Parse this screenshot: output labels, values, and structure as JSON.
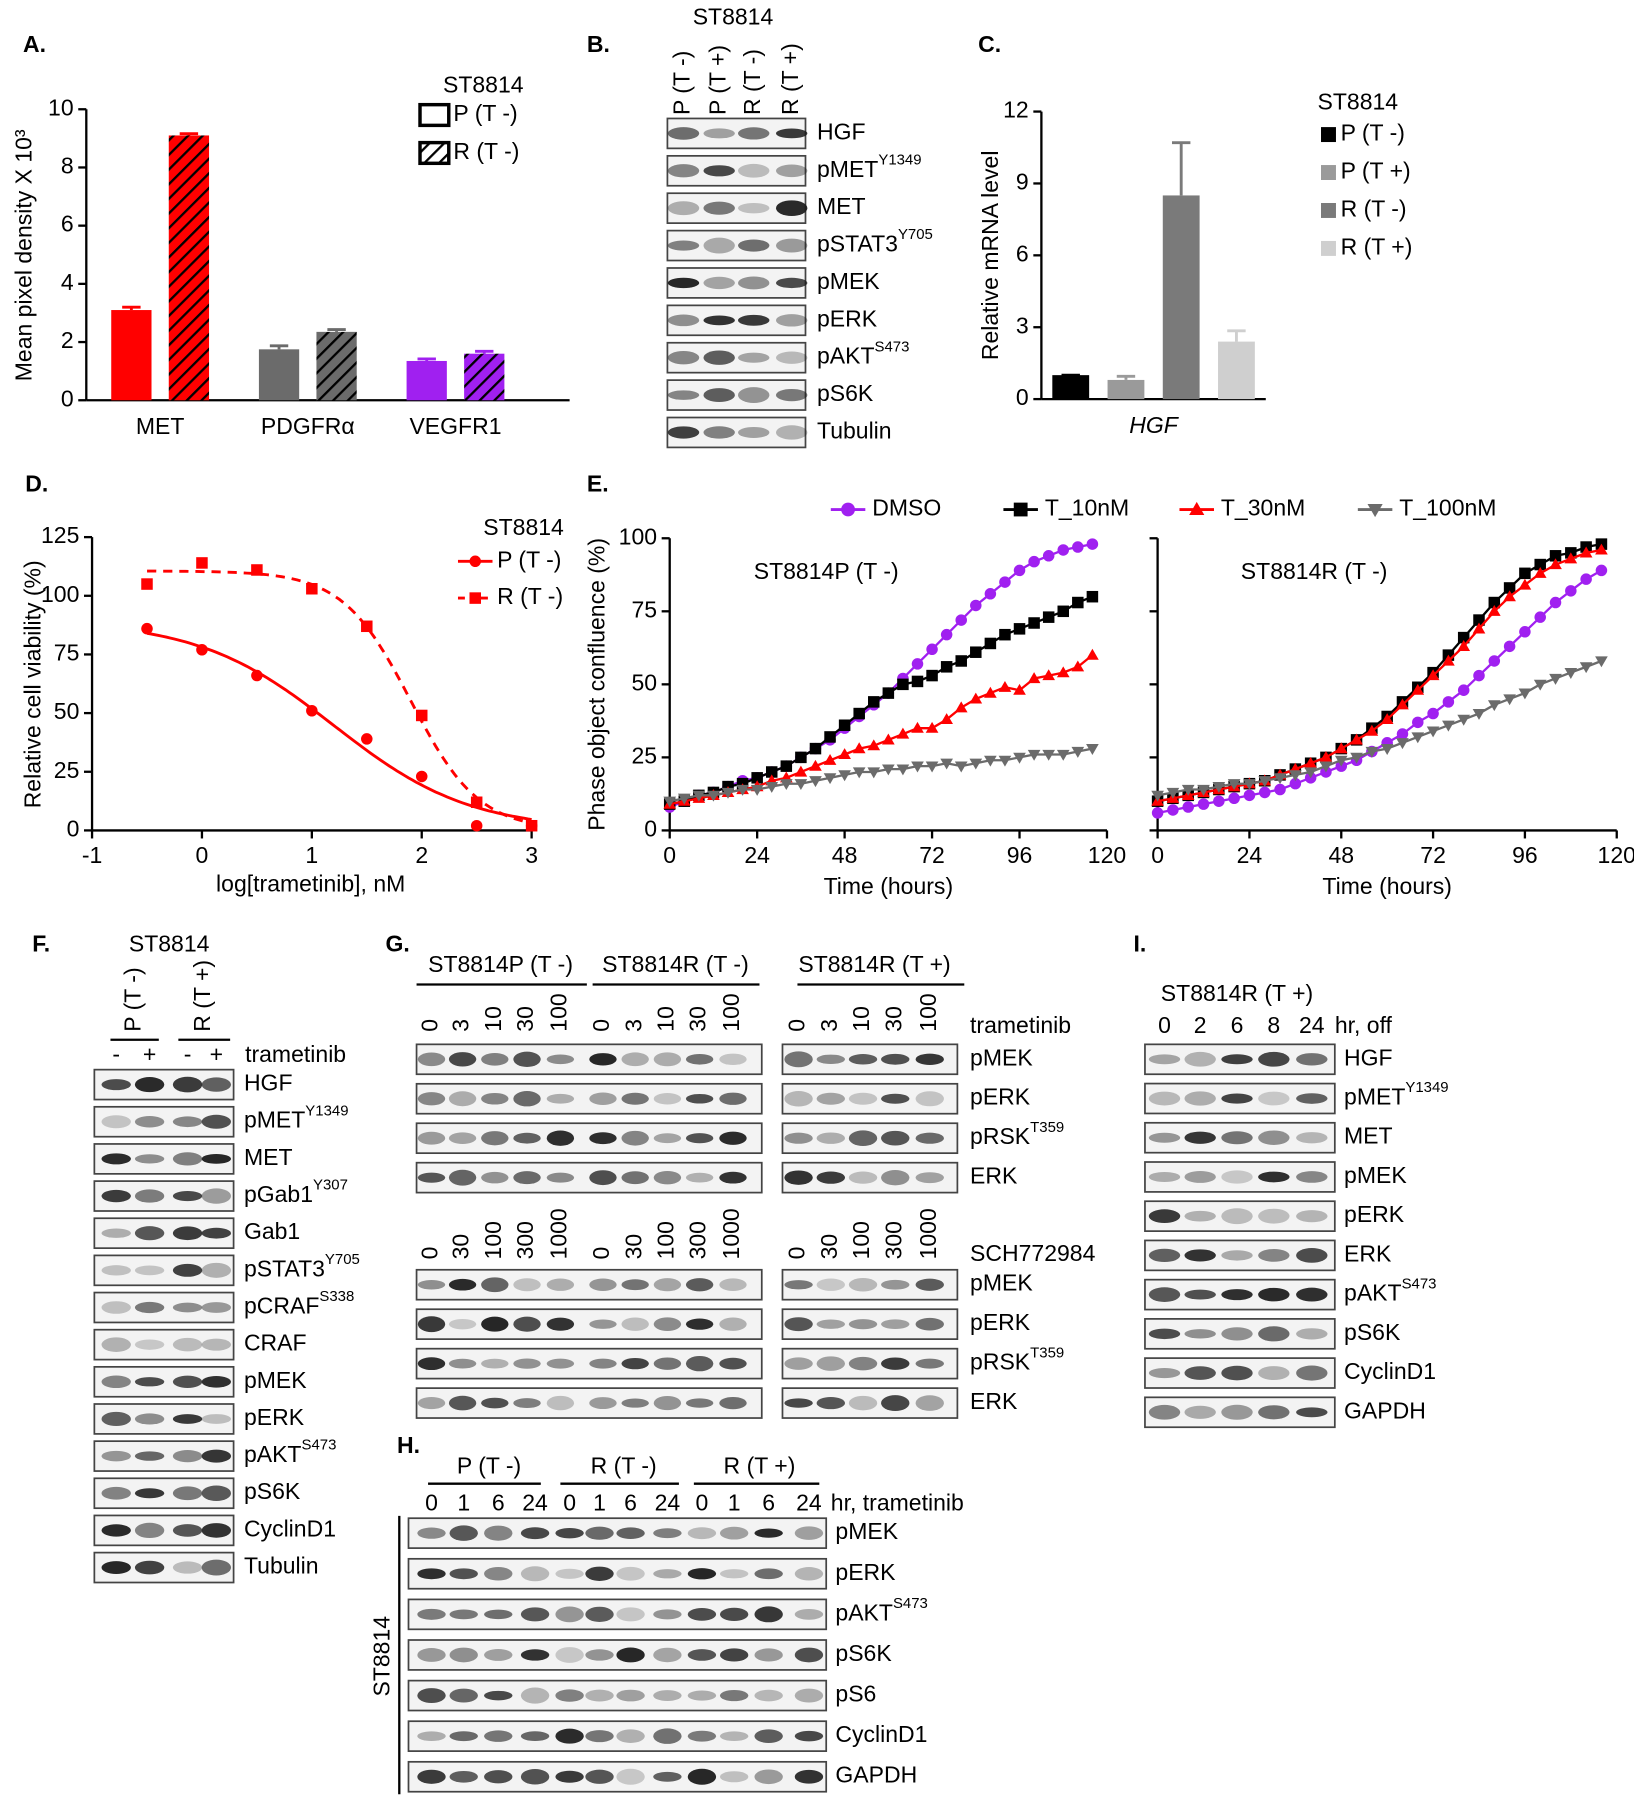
{
  "chart_data": [
    {
      "type": "bar",
      "label": "A.",
      "ylabel": "Mean pixel density X 10³",
      "legend_title": "ST8814",
      "categories": [
        "MET",
        "PDGFRα",
        "VEGFR1"
      ],
      "category_colors": [
        "#ff0000",
        "#6b6b6b",
        "#a020f0"
      ],
      "series": [
        {
          "name": "P (T -)",
          "pattern": "solid",
          "values": [
            3.1,
            1.75,
            1.35
          ],
          "errors": [
            0.1,
            0.12,
            0.07
          ]
        },
        {
          "name": "R (T -)",
          "pattern": "hatch",
          "values": [
            9.1,
            2.35,
            1.6
          ],
          "errors": [
            0.06,
            0.08,
            0.08
          ]
        }
      ],
      "ylim": [
        0,
        10
      ],
      "yticks": [
        0,
        2,
        4,
        6,
        8,
        10
      ]
    },
    {
      "type": "bar",
      "label": "C.",
      "ylabel": "Relative mRNA level",
      "legend_title": "ST8814",
      "categories": [
        "HGF"
      ],
      "category_font_style": "italic",
      "series": [
        {
          "name": "P (T -)",
          "color": "#000000",
          "values": [
            1.0
          ],
          "errors": [
            0
          ]
        },
        {
          "name": "P (T +)",
          "color": "#9a9a9a",
          "values": [
            0.8
          ],
          "errors": [
            0.15
          ]
        },
        {
          "name": "R (T -)",
          "color": "#7a7a7a",
          "values": [
            8.5
          ],
          "errors": [
            2.2
          ]
        },
        {
          "name": "R (T +)",
          "color": "#cfcfcf",
          "values": [
            2.4
          ],
          "errors": [
            0.45
          ]
        }
      ],
      "ylim": [
        0,
        12
      ],
      "yticks": [
        0,
        3,
        6,
        9,
        12
      ]
    },
    {
      "type": "scatter",
      "label": "D.",
      "xlabel": "log[trametinib], nM",
      "ylabel": "Relative cell viability (%)",
      "legend_title": "ST8814",
      "x": [
        -0.5,
        0,
        0.5,
        1,
        1.5,
        2,
        2.5,
        3
      ],
      "fit": "sigmoidal",
      "series": [
        {
          "name": "P (T -)",
          "color": "#ff0000",
          "marker": "circle",
          "dash": false,
          "values": [
            86,
            77,
            66,
            51,
            39,
            23,
            2,
            2
          ]
        },
        {
          "name": "R (T -)",
          "color": "#ff0000",
          "marker": "square",
          "dash": true,
          "values": [
            105,
            114,
            111,
            103,
            87,
            49,
            12,
            2
          ]
        }
      ],
      "xlim": [
        -1,
        3
      ],
      "xticks": [
        -1,
        0,
        1,
        2,
        3
      ],
      "ylim": [
        0,
        125
      ],
      "yticks": [
        0,
        25,
        50,
        75,
        100,
        125
      ]
    },
    {
      "type": "line",
      "label": "E.",
      "xlabel": "Time (hours)",
      "ylabel": "Phase object confluence (%)",
      "x": [
        0,
        4,
        8,
        12,
        16,
        20,
        24,
        28,
        32,
        36,
        40,
        44,
        48,
        52,
        56,
        60,
        64,
        68,
        72,
        76,
        80,
        84,
        88,
        92,
        96,
        100,
        104,
        108,
        112,
        116
      ],
      "series": [
        {
          "name": "DMSO",
          "color": "#a020f0",
          "marker": "circle"
        },
        {
          "name": "T_10nM",
          "color": "#000000",
          "marker": "square"
        },
        {
          "name": "T_30nM",
          "color": "#ff0000",
          "marker": "triangle-up"
        },
        {
          "name": "T_100nM",
          "color": "#6b6b6b",
          "marker": "triangle-down"
        }
      ],
      "panels": [
        {
          "annotation": "ST8814P (T -)",
          "values": [
            [
              8,
              10,
              12,
              13,
              15,
              17,
              18,
              20,
              22,
              25,
              28,
              31,
              35,
              39,
              43,
              47,
              52,
              57,
              62,
              67,
              72,
              77,
              81,
              85,
              89,
              92,
              94,
              96,
              97,
              98
            ],
            [
              9,
              10,
              12,
              13,
              15,
              16,
              18,
              20,
              22,
              25,
              28,
              32,
              36,
              40,
              44,
              47,
              50,
              51,
              53,
              56,
              58,
              61,
              64,
              67,
              69,
              71,
              73,
              75,
              78,
              80
            ],
            [
              9,
              10,
              11,
              12,
              13,
              14,
              15,
              17,
              18,
              20,
              22,
              24,
              26,
              28,
              29,
              31,
              33,
              35,
              35,
              38,
              42,
              45,
              47,
              49,
              48,
              52,
              53,
              54,
              56,
              60
            ],
            [
              10,
              11,
              12,
              12,
              13,
              14,
              14,
              15,
              16,
              16,
              17,
              18,
              19,
              20,
              20,
              21,
              21,
              22,
              22,
              23,
              22,
              23,
              24,
              24,
              25,
              26,
              26,
              26,
              27,
              28
            ]
          ]
        },
        {
          "annotation": "ST8814R (T -)",
          "values": [
            [
              6,
              7,
              8,
              9,
              10,
              11,
              12,
              13,
              14,
              16,
              18,
              20,
              22,
              24,
              27,
              30,
              33,
              37,
              40,
              44,
              48,
              53,
              58,
              63,
              68,
              73,
              78,
              82,
              86,
              89
            ],
            [
              10,
              11,
              12,
              13,
              14,
              15,
              16,
              17,
              19,
              21,
              23,
              25,
              28,
              31,
              35,
              39,
              44,
              49,
              54,
              60,
              66,
              72,
              78,
              83,
              88,
              91,
              94,
              95,
              97,
              98
            ],
            [
              10,
              11,
              12,
              13,
              14,
              15,
              16,
              17,
              19,
              21,
              23,
              25,
              28,
              31,
              34,
              38,
              43,
              48,
              53,
              58,
              63,
              69,
              75,
              80,
              84,
              88,
              91,
              93,
              95,
              96
            ],
            [
              12,
              13,
              14,
              14,
              15,
              16,
              16,
              17,
              18,
              19,
              20,
              22,
              24,
              25,
              27,
              28,
              30,
              32,
              34,
              36,
              38,
              40,
              43,
              45,
              47,
              50,
              52,
              54,
              56,
              58
            ]
          ]
        }
      ],
      "xlim": [
        0,
        120
      ],
      "xticks": [
        0,
        24,
        48,
        72,
        96,
        120
      ],
      "ylim": [
        0,
        100
      ],
      "yticks": [
        0,
        25,
        50,
        75,
        100
      ]
    }
  ],
  "blots": {
    "B": {
      "label": "B.",
      "title": "ST8814",
      "lanes": [
        "P (T -)",
        "P (T +)",
        "R (T -)",
        "R (T +)"
      ],
      "rows": [
        {
          "name": "HGF"
        },
        {
          "name": "pMET",
          "sup": "Y1349"
        },
        {
          "name": "MET"
        },
        {
          "name": "pSTAT3",
          "sup": "Y705"
        },
        {
          "name": "pMEK"
        },
        {
          "name": "pERK"
        },
        {
          "name": "pAKT",
          "sup": "S473"
        },
        {
          "name": "pS6K"
        },
        {
          "name": "Tubulin"
        }
      ]
    },
    "F": {
      "label": "F.",
      "title": "ST8814",
      "groups": [
        "P (T -)",
        "R (T +)"
      ],
      "signs": [
        "-",
        "+"
      ],
      "treatment": "trametinib",
      "rows": [
        {
          "name": "HGF"
        },
        {
          "name": "pMET",
          "sup": "Y1349"
        },
        {
          "name": "MET"
        },
        {
          "name": "pGab1",
          "sup": "Y307"
        },
        {
          "name": "Gab1"
        },
        {
          "name": "pSTAT3",
          "sup": "Y705"
        },
        {
          "name": "pCRAF",
          "sup": "S338"
        },
        {
          "name": "CRAF"
        },
        {
          "name": "pMEK"
        },
        {
          "name": "pERK"
        },
        {
          "name": "pAKT",
          "sup": "S473"
        },
        {
          "name": "pS6K"
        },
        {
          "name": "CyclinD1"
        },
        {
          "name": "Tubulin"
        }
      ]
    },
    "G": {
      "label": "G.",
      "groups": [
        "ST8814P (T -)",
        "ST8814R (T -)",
        "ST8814R (T +)"
      ],
      "sets": [
        {
          "treatment": "trametinib",
          "doses": [
            0,
            3,
            10,
            30,
            100
          ],
          "rows": [
            {
              "name": "pMEK"
            },
            {
              "name": "pERK"
            },
            {
              "name": "pRSK",
              "sup": "T359"
            },
            {
              "name": "ERK"
            }
          ]
        },
        {
          "treatment": "SCH772984",
          "doses": [
            0,
            30,
            100,
            300,
            1000
          ],
          "rows": [
            {
              "name": "pMEK"
            },
            {
              "name": "pERK"
            },
            {
              "name": "pRSK",
              "sup": "T359"
            },
            {
              "name": "ERK"
            }
          ]
        }
      ]
    },
    "H": {
      "label": "H.",
      "groups": [
        "P (T -)",
        "R (T -)",
        "R (T +)"
      ],
      "times": [
        0,
        1,
        6,
        24
      ],
      "unit": "hr, trametinib",
      "side_label": "ST8814",
      "rows": [
        {
          "name": "pMEK"
        },
        {
          "name": "pERK"
        },
        {
          "name": "pAKT",
          "sup": "S473"
        },
        {
          "name": "pS6K"
        },
        {
          "name": "pS6"
        },
        {
          "name": "CyclinD1"
        },
        {
          "name": "GAPDH"
        }
      ]
    },
    "I": {
      "label": "I.",
      "title": "ST8814R (T +)",
      "times": [
        0,
        2,
        6,
        8,
        24
      ],
      "unit": "hr, off",
      "rows": [
        {
          "name": "HGF"
        },
        {
          "name": "pMET",
          "sup": "Y1349"
        },
        {
          "name": "MET"
        },
        {
          "name": "pMEK"
        },
        {
          "name": "pERK"
        },
        {
          "name": "ERK"
        },
        {
          "name": "pAKT",
          "sup": "S473"
        },
        {
          "name": "pS6K"
        },
        {
          "name": "CyclinD1"
        },
        {
          "name": "GAPDH"
        }
      ]
    }
  }
}
